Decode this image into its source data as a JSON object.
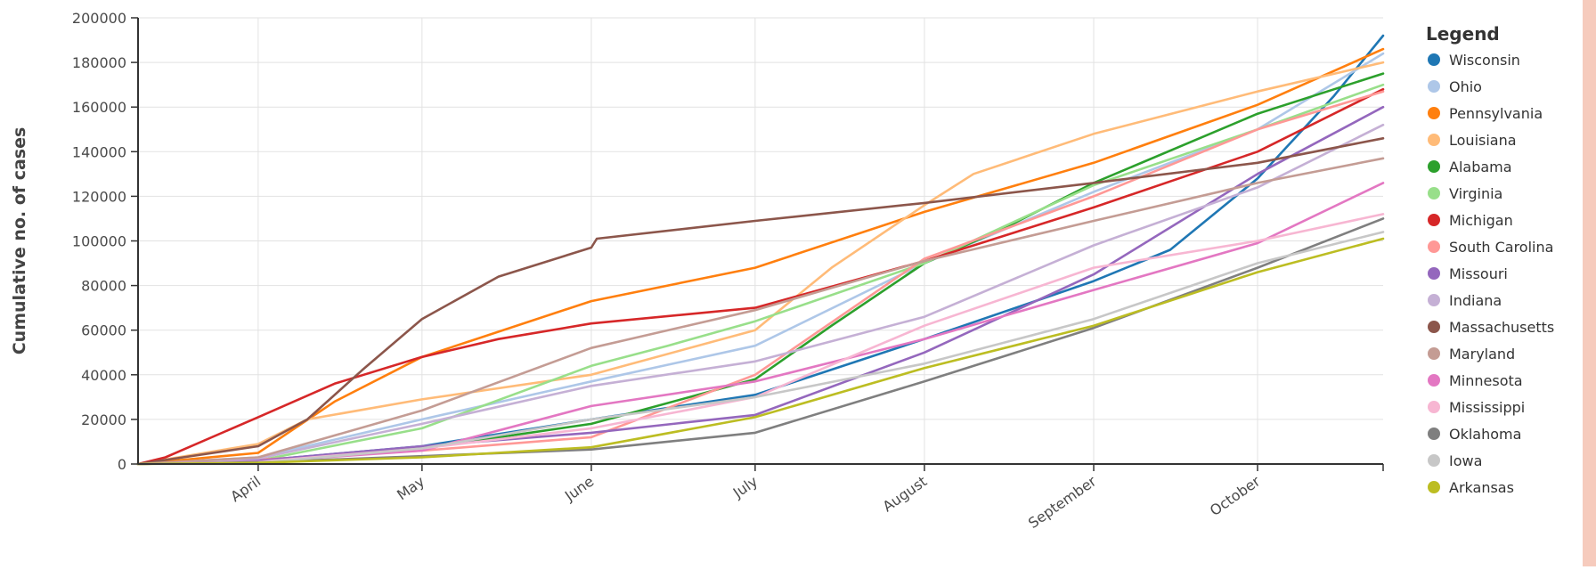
{
  "colors": {
    "background": "#ffffff",
    "right_strip": "#f6cbbd",
    "grid": "#e2e2e2",
    "axis": "#333333"
  },
  "chart_data": {
    "type": "line",
    "title": "",
    "xlabel": "",
    "ylabel": "Cumulative no. of cases",
    "x_range": [
      "2020-03-10",
      "2020-10-24"
    ],
    "ylim": [
      0,
      200000
    ],
    "y_ticks": [
      0,
      20000,
      40000,
      60000,
      80000,
      100000,
      120000,
      140000,
      160000,
      180000,
      200000
    ],
    "y_tick_labels": [
      "0",
      "20000",
      "40000",
      "60000",
      "80000",
      "100000",
      "120000",
      "140000",
      "160000",
      "180000",
      "200000"
    ],
    "x_ticks": [
      "2020-04-01",
      "2020-05-01",
      "2020-06-01",
      "2020-07-01",
      "2020-08-01",
      "2020-09-01",
      "2020-10-01"
    ],
    "x_tick_labels": [
      "April",
      "May",
      "June",
      "July",
      "August",
      "September",
      "October"
    ],
    "grid": true,
    "legend_title": "Legend",
    "legend_position": "right",
    "series": [
      {
        "name": "Wisconsin",
        "color": "#1f77b4",
        "points": [
          [
            "2020-03-10",
            0
          ],
          [
            "2020-04-01",
            1500
          ],
          [
            "2020-05-01",
            8000
          ],
          [
            "2020-06-01",
            20000
          ],
          [
            "2020-07-01",
            31000
          ],
          [
            "2020-08-01",
            56000
          ],
          [
            "2020-09-01",
            82000
          ],
          [
            "2020-09-15",
            96000
          ],
          [
            "2020-10-01",
            128000
          ],
          [
            "2020-10-15",
            165000
          ],
          [
            "2020-10-24",
            192000
          ]
        ]
      },
      {
        "name": "Ohio",
        "color": "#aec7e8",
        "points": [
          [
            "2020-03-10",
            0
          ],
          [
            "2020-04-01",
            3000
          ],
          [
            "2020-05-01",
            20000
          ],
          [
            "2020-06-01",
            37000
          ],
          [
            "2020-07-01",
            53000
          ],
          [
            "2020-08-01",
            90000
          ],
          [
            "2020-09-01",
            122000
          ],
          [
            "2020-10-01",
            150000
          ],
          [
            "2020-10-24",
            184000
          ]
        ]
      },
      {
        "name": "Pennsylvania",
        "color": "#ff7f0e",
        "points": [
          [
            "2020-03-10",
            0
          ],
          [
            "2020-04-01",
            5000
          ],
          [
            "2020-04-15",
            28000
          ],
          [
            "2020-05-01",
            48000
          ],
          [
            "2020-06-01",
            73000
          ],
          [
            "2020-07-01",
            88000
          ],
          [
            "2020-08-01",
            113000
          ],
          [
            "2020-09-01",
            135000
          ],
          [
            "2020-10-01",
            161000
          ],
          [
            "2020-10-24",
            186000
          ]
        ]
      },
      {
        "name": "Louisiana",
        "color": "#ffbb78",
        "points": [
          [
            "2020-03-10",
            0
          ],
          [
            "2020-04-01",
            9000
          ],
          [
            "2020-04-10",
            20000
          ],
          [
            "2020-05-01",
            29000
          ],
          [
            "2020-06-01",
            40000
          ],
          [
            "2020-07-01",
            60000
          ],
          [
            "2020-07-15",
            88000
          ],
          [
            "2020-08-01",
            116000
          ],
          [
            "2020-08-10",
            130000
          ],
          [
            "2020-09-01",
            148000
          ],
          [
            "2020-10-01",
            167000
          ],
          [
            "2020-10-24",
            180000
          ]
        ]
      },
      {
        "name": "Alabama",
        "color": "#2ca02c",
        "points": [
          [
            "2020-03-10",
            0
          ],
          [
            "2020-04-01",
            1000
          ],
          [
            "2020-05-01",
            7000
          ],
          [
            "2020-06-01",
            18000
          ],
          [
            "2020-07-01",
            38000
          ],
          [
            "2020-07-15",
            62000
          ],
          [
            "2020-08-01",
            90000
          ],
          [
            "2020-08-15",
            105000
          ],
          [
            "2020-09-01",
            126000
          ],
          [
            "2020-10-01",
            157000
          ],
          [
            "2020-10-24",
            175000
          ]
        ]
      },
      {
        "name": "Virginia",
        "color": "#98df8a",
        "points": [
          [
            "2020-03-10",
            0
          ],
          [
            "2020-04-01",
            1500
          ],
          [
            "2020-05-01",
            16000
          ],
          [
            "2020-06-01",
            44000
          ],
          [
            "2020-06-15",
            53000
          ],
          [
            "2020-07-01",
            64000
          ],
          [
            "2020-08-01",
            90000
          ],
          [
            "2020-09-01",
            125000
          ],
          [
            "2020-10-01",
            150000
          ],
          [
            "2020-10-24",
            170000
          ]
        ]
      },
      {
        "name": "Michigan",
        "color": "#d62728",
        "points": [
          [
            "2020-03-10",
            0
          ],
          [
            "2020-03-15",
            3000
          ],
          [
            "2020-04-01",
            21000
          ],
          [
            "2020-04-15",
            36000
          ],
          [
            "2020-05-01",
            48000
          ],
          [
            "2020-05-15",
            56000
          ],
          [
            "2020-06-01",
            63000
          ],
          [
            "2020-07-01",
            70000
          ],
          [
            "2020-08-01",
            91000
          ],
          [
            "2020-09-01",
            115000
          ],
          [
            "2020-10-01",
            140000
          ],
          [
            "2020-10-24",
            168000
          ]
        ]
      },
      {
        "name": "South Carolina",
        "color": "#ff9896",
        "points": [
          [
            "2020-03-10",
            0
          ],
          [
            "2020-04-01",
            2000
          ],
          [
            "2020-05-01",
            6000
          ],
          [
            "2020-06-01",
            12000
          ],
          [
            "2020-07-01",
            40000
          ],
          [
            "2020-08-01",
            92000
          ],
          [
            "2020-09-01",
            120000
          ],
          [
            "2020-10-01",
            150000
          ],
          [
            "2020-10-24",
            167000
          ]
        ]
      },
      {
        "name": "Missouri",
        "color": "#9467bd",
        "points": [
          [
            "2020-03-10",
            0
          ],
          [
            "2020-04-01",
            1500
          ],
          [
            "2020-05-01",
            8000
          ],
          [
            "2020-06-01",
            14000
          ],
          [
            "2020-07-01",
            22000
          ],
          [
            "2020-08-01",
            50000
          ],
          [
            "2020-09-01",
            85000
          ],
          [
            "2020-10-01",
            130000
          ],
          [
            "2020-10-24",
            160000
          ]
        ]
      },
      {
        "name": "Indiana",
        "color": "#c5b0d5",
        "points": [
          [
            "2020-03-10",
            0
          ],
          [
            "2020-04-01",
            2500
          ],
          [
            "2020-05-01",
            18000
          ],
          [
            "2020-06-01",
            35000
          ],
          [
            "2020-07-01",
            46000
          ],
          [
            "2020-08-01",
            66000
          ],
          [
            "2020-09-01",
            98000
          ],
          [
            "2020-10-01",
            124000
          ],
          [
            "2020-10-24",
            152000
          ]
        ]
      },
      {
        "name": "Massachusetts",
        "color": "#8c564b",
        "points": [
          [
            "2020-03-10",
            0
          ],
          [
            "2020-04-01",
            8000
          ],
          [
            "2020-04-10",
            20000
          ],
          [
            "2020-04-20",
            42000
          ],
          [
            "2020-05-01",
            65000
          ],
          [
            "2020-05-15",
            84000
          ],
          [
            "2020-06-01",
            97000
          ],
          [
            "2020-06-02",
            101000
          ],
          [
            "2020-07-01",
            109000
          ],
          [
            "2020-08-01",
            117000
          ],
          [
            "2020-09-01",
            126000
          ],
          [
            "2020-10-01",
            135000
          ],
          [
            "2020-10-24",
            146000
          ]
        ]
      },
      {
        "name": "Maryland",
        "color": "#c49c94",
        "points": [
          [
            "2020-03-10",
            0
          ],
          [
            "2020-04-01",
            3000
          ],
          [
            "2020-05-01",
            24000
          ],
          [
            "2020-06-01",
            52000
          ],
          [
            "2020-07-01",
            69000
          ],
          [
            "2020-08-01",
            91000
          ],
          [
            "2020-09-01",
            109000
          ],
          [
            "2020-10-01",
            126000
          ],
          [
            "2020-10-24",
            137000
          ]
        ]
      },
      {
        "name": "Minnesota",
        "color": "#e377c2",
        "points": [
          [
            "2020-03-10",
            0
          ],
          [
            "2020-04-01",
            1000
          ],
          [
            "2020-05-01",
            6000
          ],
          [
            "2020-06-01",
            26000
          ],
          [
            "2020-07-01",
            37000
          ],
          [
            "2020-08-01",
            56000
          ],
          [
            "2020-09-01",
            78000
          ],
          [
            "2020-10-01",
            99000
          ],
          [
            "2020-10-24",
            126000
          ]
        ]
      },
      {
        "name": "Mississippi",
        "color": "#f7b6d2",
        "points": [
          [
            "2020-03-10",
            0
          ],
          [
            "2020-04-01",
            1000
          ],
          [
            "2020-05-01",
            7000
          ],
          [
            "2020-06-01",
            16000
          ],
          [
            "2020-07-01",
            30000
          ],
          [
            "2020-08-01",
            62000
          ],
          [
            "2020-09-01",
            88000
          ],
          [
            "2020-10-01",
            100000
          ],
          [
            "2020-10-24",
            112000
          ]
        ]
      },
      {
        "name": "Oklahoma",
        "color": "#7f7f7f",
        "points": [
          [
            "2020-03-10",
            0
          ],
          [
            "2020-04-01",
            800
          ],
          [
            "2020-05-01",
            3500
          ],
          [
            "2020-06-01",
            6500
          ],
          [
            "2020-07-01",
            14000
          ],
          [
            "2020-08-01",
            37000
          ],
          [
            "2020-09-01",
            61000
          ],
          [
            "2020-10-01",
            88000
          ],
          [
            "2020-10-24",
            110000
          ]
        ]
      },
      {
        "name": "Iowa",
        "color": "#c7c7c7",
        "points": [
          [
            "2020-03-10",
            0
          ],
          [
            "2020-04-01",
            500
          ],
          [
            "2020-05-01",
            7000
          ],
          [
            "2020-06-01",
            20000
          ],
          [
            "2020-07-01",
            30000
          ],
          [
            "2020-08-01",
            45000
          ],
          [
            "2020-09-01",
            65000
          ],
          [
            "2020-10-01",
            90000
          ],
          [
            "2020-10-24",
            104000
          ]
        ]
      },
      {
        "name": "Arkansas",
        "color": "#bcbd22",
        "points": [
          [
            "2020-03-10",
            0
          ],
          [
            "2020-04-01",
            500
          ],
          [
            "2020-05-01",
            3000
          ],
          [
            "2020-06-01",
            7500
          ],
          [
            "2020-07-01",
            21000
          ],
          [
            "2020-08-01",
            43000
          ],
          [
            "2020-09-01",
            62000
          ],
          [
            "2020-10-01",
            86000
          ],
          [
            "2020-10-24",
            101000
          ]
        ]
      }
    ]
  }
}
